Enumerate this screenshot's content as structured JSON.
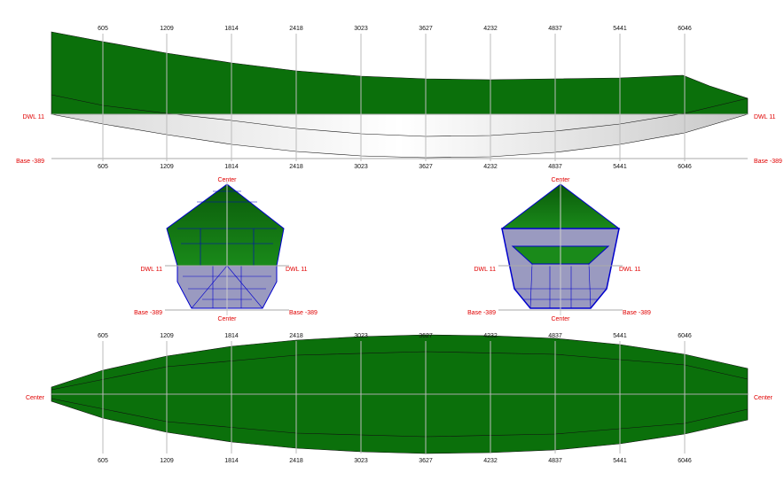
{
  "profile": {
    "stations": [
      605,
      1209,
      1814,
      2418,
      3023,
      3627,
      4232,
      4837,
      5441,
      6046
    ],
    "dwl_label": "DWL 11",
    "base_label": "Base -389"
  },
  "sections": {
    "center_label": "Center",
    "dwl_label": "DWL 11",
    "base_label": "Base -389"
  },
  "plan": {
    "stations": [
      605,
      1209,
      1814,
      2418,
      3023,
      3627,
      4232,
      4837,
      5441,
      6046
    ],
    "center_label": "Center"
  }
}
